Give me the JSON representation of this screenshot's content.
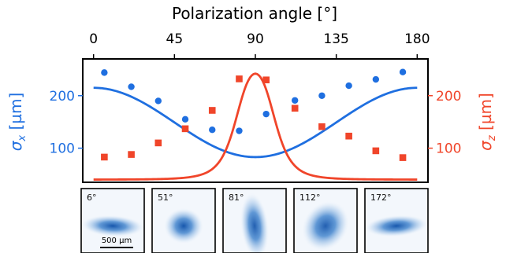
{
  "chart_data": {
    "type": "scatter",
    "title": "",
    "top_xlabel": "Polarization angle [°]",
    "x_ticks": [
      0,
      45,
      90,
      135,
      180
    ],
    "xlim": [
      -6,
      186
    ],
    "ylabel_left": {
      "symbol": "σ",
      "sub": "x",
      "unit": " [µm]"
    },
    "ylabel_right": {
      "symbol": "σ",
      "sub": "z",
      "unit": " [µm]"
    },
    "ylim": [
      35,
      270
    ],
    "y_ticks_left": [
      100,
      200
    ],
    "y_ticks_right": [
      100,
      200
    ],
    "colors": {
      "sigma_x": "#1f6fe0",
      "sigma_z": "#f0452a"
    },
    "series": [
      {
        "key": "sigma_x_data",
        "marker": "circle",
        "color": "#1f6fe0",
        "x": [
          6,
          21,
          36,
          51,
          66,
          81,
          96,
          112,
          127,
          142,
          157,
          172
        ],
        "y": [
          244,
          217,
          190,
          155,
          135,
          133,
          165,
          191,
          200,
          219,
          231,
          245
        ]
      },
      {
        "key": "sigma_z_data",
        "marker": "square",
        "color": "#f0452a",
        "x": [
          6,
          21,
          36,
          51,
          66,
          81,
          96,
          112,
          127,
          142,
          157,
          172
        ],
        "y": [
          83,
          88,
          110,
          137,
          172,
          232,
          230,
          176,
          141,
          123,
          95,
          82
        ]
      },
      {
        "key": "sigma_x_model",
        "line": true,
        "color": "#1f6fe0",
        "function": "sigma_x",
        "x_range": [
          0,
          180
        ]
      },
      {
        "key": "sigma_z_model",
        "line": true,
        "color": "#f0452a",
        "function": "sigma_z",
        "x_range": [
          0,
          180
        ]
      }
    ],
    "images": [
      {
        "label": "6°",
        "scale_bar": "500 µm",
        "spot": {
          "rx": 0.27,
          "ry": 0.09,
          "angle": 3,
          "intensity": 0.95
        }
      },
      {
        "label": "51°",
        "spot": {
          "rx": 0.17,
          "ry": 0.15,
          "angle": 0,
          "intensity": 0.95
        }
      },
      {
        "label": "81°",
        "spot": {
          "rx": 0.12,
          "ry": 0.28,
          "angle": -6,
          "intensity": 0.9
        }
      },
      {
        "label": "112°",
        "spot": {
          "rx": 0.19,
          "ry": 0.22,
          "angle": 35,
          "intensity": 0.9
        }
      },
      {
        "label": "172°",
        "spot": {
          "rx": 0.27,
          "ry": 0.09,
          "angle": -4,
          "intensity": 0.95
        }
      }
    ]
  }
}
